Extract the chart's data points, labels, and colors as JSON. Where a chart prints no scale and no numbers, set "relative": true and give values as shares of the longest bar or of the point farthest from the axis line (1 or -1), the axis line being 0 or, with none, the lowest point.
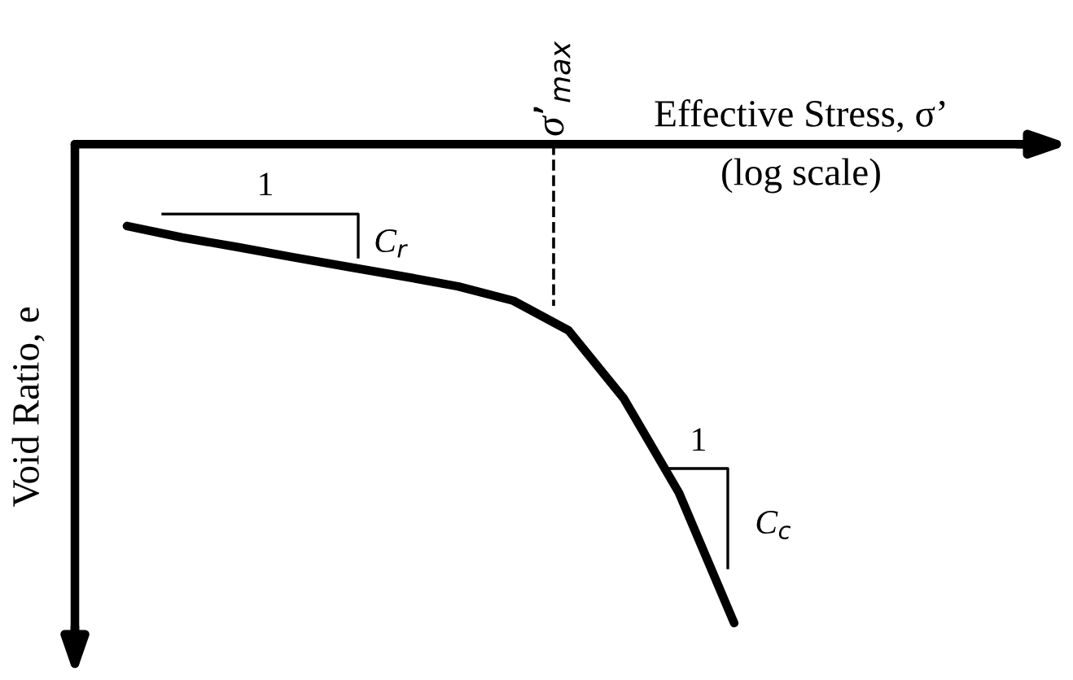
{
  "chart_data": {
    "type": "line",
    "relative": true,
    "xlabel": "Effective Stress, σ’\n(log scale)",
    "ylabel": "Void Ratio, e",
    "categories": [
      null,
      null,
      null,
      null,
      null,
      null,
      null,
      null,
      null,
      null,
      null,
      null
    ],
    "series": [
      {
        "color": "#000000",
        "values": [
          -0.171,
          -0.195,
          -0.215,
          -0.236,
          -0.256,
          -0.276,
          -0.297,
          -0.327,
          -0.389,
          -0.531,
          -0.728,
          -1.0
        ]
      }
    ],
    "annotations": [
      "1",
      "C$_{r}$",
      "1",
      "C$_{c}$",
      "σ’$_{max}$"
    ],
    "grid": false,
    "legend": false,
    "marker": "none",
    "line_style": "solid"
  }
}
